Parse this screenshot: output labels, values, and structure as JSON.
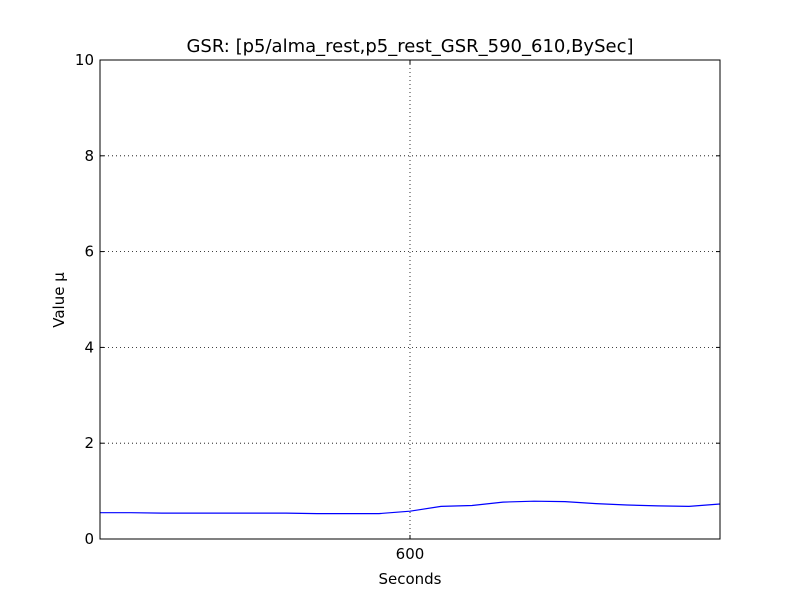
{
  "chart_data": {
    "type": "line",
    "title": "GSR: [p5/alma_rest,p5_rest_GSR_590_610,BySec]",
    "xlabel": "Seconds",
    "ylabel": "Value µ",
    "xlim": [
      590,
      610
    ],
    "ylim": [
      0,
      10
    ],
    "x_ticks": [
      600
    ],
    "x_tick_labels": [
      "600"
    ],
    "y_ticks": [
      0,
      2,
      4,
      6,
      8,
      10
    ],
    "y_tick_labels": [
      "0",
      "2",
      "4",
      "6",
      "8",
      "10"
    ],
    "grid": true,
    "series": [
      {
        "color": "#0000ff",
        "x": [
          590,
          591,
          592,
          593,
          594,
          595,
          596,
          597,
          598,
          599,
          600,
          601,
          602,
          603,
          604,
          605,
          606,
          607,
          608,
          609,
          610
        ],
        "y": [
          0.55,
          0.55,
          0.54,
          0.54,
          0.54,
          0.54,
          0.54,
          0.53,
          0.53,
          0.53,
          0.58,
          0.68,
          0.7,
          0.77,
          0.79,
          0.78,
          0.74,
          0.71,
          0.69,
          0.68,
          0.73
        ]
      }
    ]
  }
}
